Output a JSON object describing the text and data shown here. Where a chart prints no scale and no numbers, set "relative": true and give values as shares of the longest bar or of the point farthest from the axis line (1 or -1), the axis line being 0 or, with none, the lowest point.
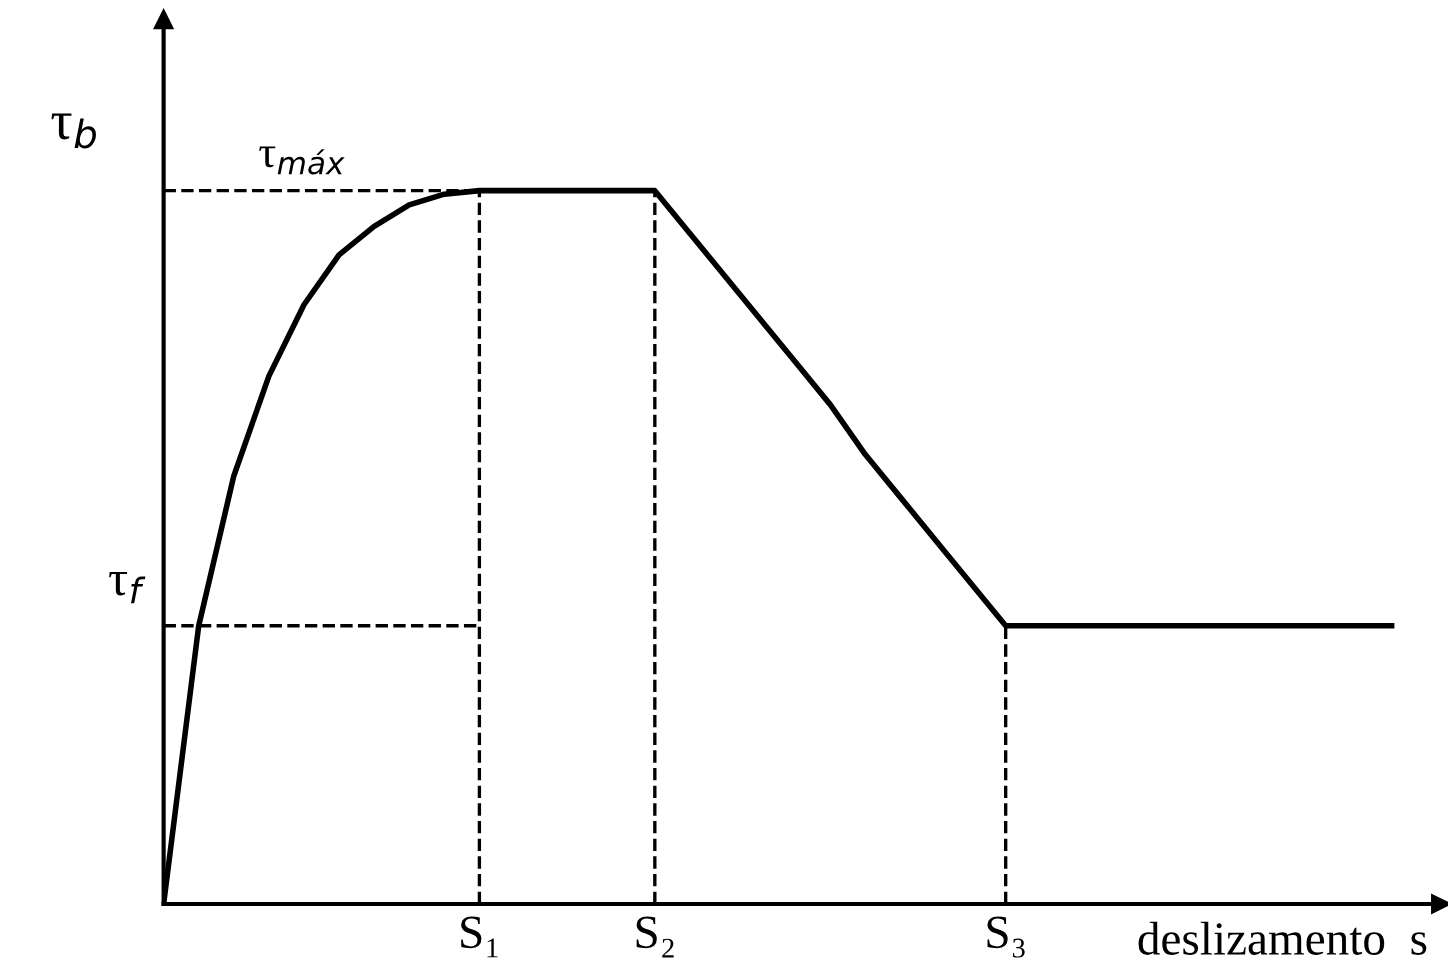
{
  "chart_data": {
    "type": "line",
    "relative": true,
    "xlabel": "deslizamento  s",
    "ylabel": "τ$_{b}$",
    "categories": [
      null,
      null,
      null,
      null,
      null,
      null,
      null,
      null,
      null,
      "S₁",
      null,
      null,
      null,
      null,
      "S₂",
      null,
      null,
      null,
      null,
      null,
      null,
      null,
      null,
      null,
      "S₃",
      null,
      null,
      null,
      null,
      null,
      null,
      null,
      null,
      null,
      null,
      null
    ],
    "series": [
      {
        "color": "#000000",
        "values": [
          0,
          0.39,
          0.6,
          0.74,
          0.84,
          0.91,
          0.95,
          0.98,
          0.995,
          1,
          1,
          1,
          1,
          1,
          1,
          0.94,
          0.88,
          0.82,
          0.76,
          0.7,
          0.63,
          0.57,
          0.51,
          0.45,
          0.39,
          0.39,
          0.39,
          0.39,
          0.39,
          0.39,
          0.39,
          0.39,
          0.39,
          0.39,
          0.39,
          0.39
        ]
      }
    ],
    "ref_lines": [
      {
        "axis": "y",
        "value": 1,
        "label": "τ$_{máx}$",
        "line_style": "dashed",
        "color": "#000000"
      },
      {
        "axis": "y",
        "value": 0.39,
        "label": "τ$_{f}$",
        "line_style": "dashed",
        "color": "#000000"
      },
      {
        "axis": "x",
        "value": "S₁",
        "line_style": "dashed",
        "color": "#000000"
      },
      {
        "axis": "x",
        "value": "S₂",
        "line_style": "dashed",
        "color": "#000000"
      },
      {
        "axis": "x",
        "value": "S₃",
        "line_style": "dashed",
        "color": "#000000"
      }
    ],
    "grid": false,
    "marker": "none",
    "line_style": "solid"
  }
}
